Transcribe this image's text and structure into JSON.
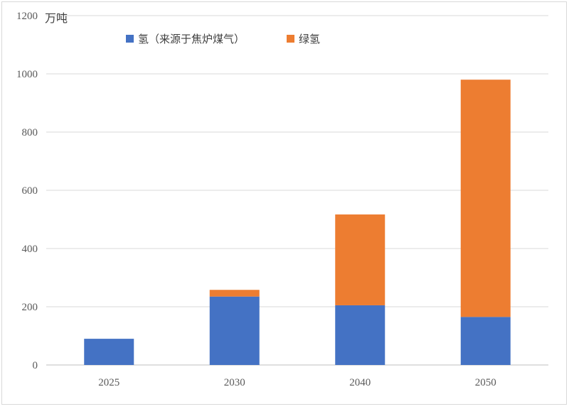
{
  "chart_data": {
    "type": "bar",
    "stacked": true,
    "unit_label": "万吨",
    "categories": [
      "2025",
      "2030",
      "2040",
      "2050"
    ],
    "series": [
      {
        "name": "氢（来源于焦炉煤气）",
        "color": "#4472c4",
        "values": [
          90,
          235,
          205,
          165
        ]
      },
      {
        "name": "绿氢",
        "color": "#ed7d31",
        "values": [
          0,
          23,
          312,
          815
        ]
      }
    ],
    "ylim": [
      0,
      1200
    ],
    "yticks": [
      "0",
      "200",
      "400",
      "600",
      "800",
      "1000",
      "1200"
    ],
    "grid": true,
    "legend_position": "top"
  }
}
